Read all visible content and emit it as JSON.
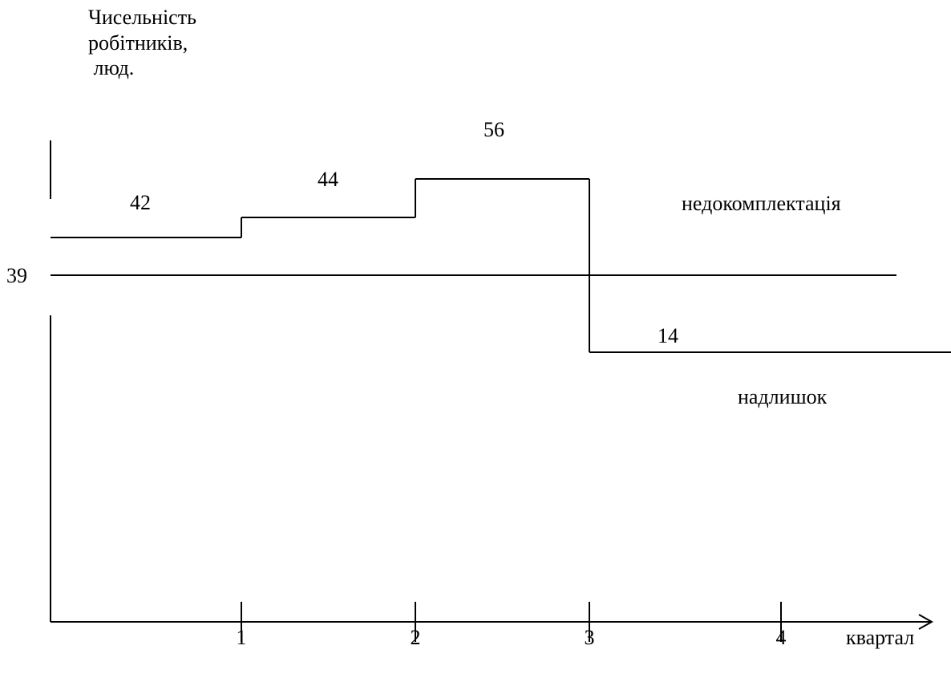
{
  "chart_data": {
    "type": "line",
    "step": true,
    "ylabel": [
      "Чисельність",
      "робітників,",
      " люд."
    ],
    "xlabel": "квартал",
    "x_ticks": [
      "1",
      "2",
      "3",
      "4"
    ],
    "baseline": {
      "value": 39,
      "label": "39"
    },
    "series": [
      {
        "segments": [
          {
            "x_from": 0,
            "x_to": 1,
            "value": 42,
            "label": "42"
          },
          {
            "x_from": 1,
            "x_to": 2,
            "value": 44,
            "label": "44"
          },
          {
            "x_from": 2,
            "x_to": 3,
            "value": 56,
            "label": "56"
          },
          {
            "x_from": 3,
            "x_to": 5,
            "value": 14,
            "label": "14"
          }
        ]
      }
    ],
    "annotations": {
      "above": "недокомплектація",
      "below": "надлишок"
    },
    "grid": false,
    "colors": {
      "line": "#000000",
      "background": "#ffffff"
    }
  }
}
